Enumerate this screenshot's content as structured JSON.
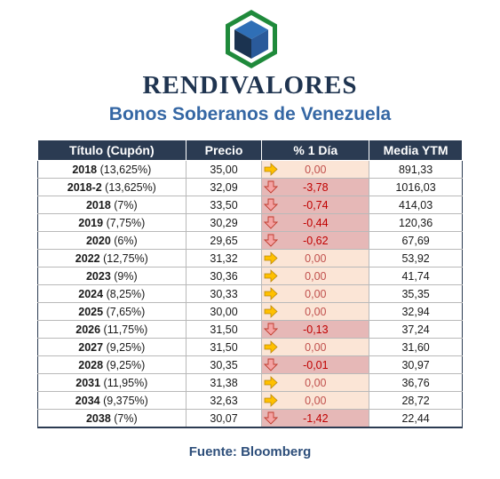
{
  "brand": "RENDIVALORES",
  "subtitle": "Bonos Soberanos de Venezuela",
  "table": {
    "headers": [
      "Título (Cupón)",
      "Precio",
      "% 1 Día",
      "Media YTM"
    ],
    "rows": [
      {
        "year": "2018",
        "coupon": " (13,625%)",
        "price": "35,00",
        "change": "0,00",
        "dir": "up",
        "ytm": "891,33"
      },
      {
        "year": "2018-2",
        "coupon": " (13,625%)",
        "price": "32,09",
        "change": "-3,78",
        "dir": "down",
        "ytm": "1016,03"
      },
      {
        "year": "2018",
        "coupon": " (7%)",
        "price": "33,50",
        "change": "-0,74",
        "dir": "down",
        "ytm": "414,03"
      },
      {
        "year": "2019",
        "coupon": " (7,75%)",
        "price": "30,29",
        "change": "-0,44",
        "dir": "down",
        "ytm": "120,36"
      },
      {
        "year": "2020",
        "coupon": " (6%)",
        "price": "29,65",
        "change": "-0,62",
        "dir": "down",
        "ytm": "67,69"
      },
      {
        "year": "2022",
        "coupon": " (12,75%)",
        "price": "31,32",
        "change": "0,00",
        "dir": "up",
        "ytm": "53,92"
      },
      {
        "year": "2023",
        "coupon": " (9%)",
        "price": "30,36",
        "change": "0,00",
        "dir": "up",
        "ytm": "41,74"
      },
      {
        "year": "2024",
        "coupon": " (8,25%)",
        "price": "30,33",
        "change": "0,00",
        "dir": "up",
        "ytm": "35,35"
      },
      {
        "year": "2025",
        "coupon": " (7,65%)",
        "price": "30,00",
        "change": "0,00",
        "dir": "up",
        "ytm": "32,94"
      },
      {
        "year": "2026",
        "coupon": " (11,75%)",
        "price": "31,50",
        "change": "-0,13",
        "dir": "down",
        "ytm": "37,24"
      },
      {
        "year": "2027",
        "coupon": " (9,25%)",
        "price": "31,50",
        "change": "0,00",
        "dir": "up",
        "ytm": "31,60"
      },
      {
        "year": "2028",
        "coupon": " (9,25%)",
        "price": "30,35",
        "change": "-0,01",
        "dir": "down",
        "ytm": "30,97"
      },
      {
        "year": "2031",
        "coupon": " (11,95%)",
        "price": "31,38",
        "change": "0,00",
        "dir": "up",
        "ytm": "36,76"
      },
      {
        "year": "2034",
        "coupon": " (9,375%)",
        "price": "32,63",
        "change": "0,00",
        "dir": "up",
        "ytm": "28,72"
      },
      {
        "year": "2038",
        "coupon": " (7%)",
        "price": "30,07",
        "change": "-1,42",
        "dir": "down",
        "ytm": "22,44"
      }
    ]
  },
  "source": "Fuente: Bloomberg",
  "colors": {
    "header_bg": "#2b3b52",
    "brand": "#1f3450",
    "subtitle": "#3567a4",
    "arrow_right": "#ffc000",
    "arrow_down": "#e06060",
    "logo_green": "#1f8a3b"
  },
  "icons": {
    "flat": "arrow-right-icon",
    "down": "arrow-down-icon",
    "logo": "cube-logo-icon"
  }
}
